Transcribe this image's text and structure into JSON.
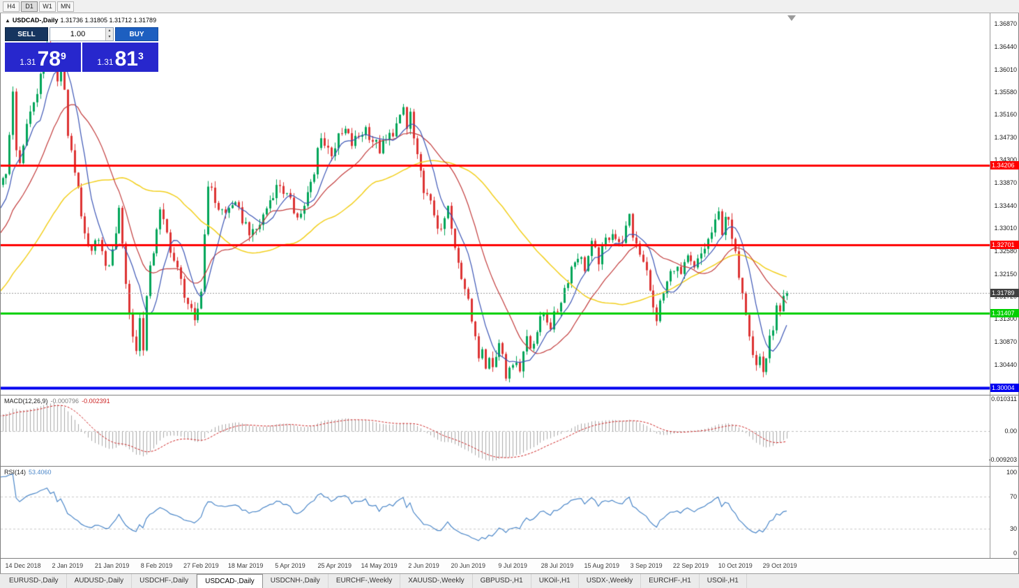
{
  "toolbar": {
    "timeframes": [
      "H4",
      "D1",
      "W1",
      "MN"
    ],
    "active": "D1"
  },
  "chart": {
    "title_symbol": "USDCAD-,Daily",
    "title_ohlc": "1.31736 1.31805 1.31712 1.31789",
    "trade_panel": {
      "sell_label": "SELL",
      "buy_label": "BUY",
      "volume": "1.00",
      "sell_price": {
        "prefix": "1.31",
        "big": "78",
        "sup": "9"
      },
      "buy_price": {
        "prefix": "1.31",
        "big": "81",
        "sup": "3"
      }
    }
  },
  "macd_label": {
    "name": "MACD(12,26,9)",
    "main": "-0.000796",
    "signal": "-0.002391"
  },
  "rsi_label": {
    "name": "RSI(14)",
    "value": "53.4060"
  },
  "tabs": [
    {
      "label": "EURUSD-,Daily",
      "active": false
    },
    {
      "label": "AUDUSD-,Daily",
      "active": false
    },
    {
      "label": "USDCHF-,Daily",
      "active": false
    },
    {
      "label": "USDCAD-,Daily",
      "active": true
    },
    {
      "label": "USDCNH-,Daily",
      "active": false
    },
    {
      "label": "EURCHF-,Weekly",
      "active": false
    },
    {
      "label": "XAUUSD-,Weekly",
      "active": false
    },
    {
      "label": "GBPUSD-,H1",
      "active": false
    },
    {
      "label": "UKOil-,H1",
      "active": false
    },
    {
      "label": "USDX-,Weekly",
      "active": false
    },
    {
      "label": "EURCHF-,H1",
      "active": false
    },
    {
      "label": "USOil-,H1",
      "active": false
    }
  ],
  "colors": {
    "up": "#00a558",
    "down": "#dd3333",
    "ma_fast": "#3b55b5",
    "ma_mid": "#c23b3b",
    "ma_slow": "#f2cf1d",
    "macd_hist": "#a8a8a8",
    "macd_signal": "#cc2222",
    "rsi": "#4a86c8",
    "current_line": "#9a9a9a"
  },
  "chart_data": {
    "type": "candlestick",
    "symbol": "USDCAD",
    "period": "Daily",
    "x0": 32,
    "dx": 4.91,
    "day_start": -60,
    "day_end": 223,
    "price_min": 1.2987,
    "price_max": 1.3707,
    "last_close": 1.31789,
    "keyframes": [
      [
        -60,
        1.298
      ],
      [
        -48,
        1.306
      ],
      [
        -36,
        1.315
      ],
      [
        -26,
        1.322
      ],
      [
        -16,
        1.329
      ],
      [
        -10,
        1.333
      ],
      [
        -7,
        1.3375
      ],
      [
        -5,
        1.34
      ],
      [
        -4,
        1.347
      ],
      [
        -3,
        1.3555
      ],
      [
        -2,
        1.3445
      ],
      [
        -1,
        1.343
      ],
      [
        0,
        1.3465
      ],
      [
        2,
        1.352
      ],
      [
        4,
        1.356
      ],
      [
        6,
        1.361
      ],
      [
        7,
        1.3648
      ],
      [
        8,
        1.3615
      ],
      [
        9,
        1.3645
      ],
      [
        10,
        1.359
      ],
      [
        11,
        1.3618
      ],
      [
        12,
        1.356
      ],
      [
        13,
        1.3478
      ],
      [
        14,
        1.344
      ],
      [
        16,
        1.338
      ],
      [
        18,
        1.328
      ],
      [
        20,
        1.325
      ],
      [
        22,
        1.329
      ],
      [
        24,
        1.322
      ],
      [
        26,
        1.3255
      ],
      [
        27,
        1.33
      ],
      [
        28,
        1.333
      ],
      [
        29,
        1.328
      ],
      [
        30,
        1.32
      ],
      [
        31,
        1.314
      ],
      [
        32,
        1.31
      ],
      [
        33,
        1.3072
      ],
      [
        34,
        1.313
      ],
      [
        35,
        1.308
      ],
      [
        36,
        1.317
      ],
      [
        37,
        1.322
      ],
      [
        38,
        1.326
      ],
      [
        39,
        1.3305
      ],
      [
        40,
        1.333
      ],
      [
        42,
        1.329
      ],
      [
        44,
        1.324
      ],
      [
        46,
        1.32
      ],
      [
        48,
        1.316
      ],
      [
        50,
        1.3118
      ],
      [
        51,
        1.315
      ],
      [
        52,
        1.3185
      ],
      [
        53,
        1.329
      ],
      [
        54,
        1.339
      ],
      [
        55,
        1.3368
      ],
      [
        57,
        1.334
      ],
      [
        59,
        1.3328
      ],
      [
        61,
        1.335
      ],
      [
        63,
        1.333
      ],
      [
        65,
        1.3308
      ],
      [
        67,
        1.3288
      ],
      [
        69,
        1.331
      ],
      [
        71,
        1.334
      ],
      [
        73,
        1.337
      ],
      [
        75,
        1.3385
      ],
      [
        77,
        1.336
      ],
      [
        79,
        1.3335
      ],
      [
        81,
        1.3328
      ],
      [
        83,
        1.3365
      ],
      [
        85,
        1.34
      ],
      [
        86,
        1.345
      ],
      [
        87,
        1.348
      ],
      [
        88,
        1.3458
      ],
      [
        90,
        1.3445
      ],
      [
        92,
        1.347
      ],
      [
        94,
        1.3485
      ],
      [
        96,
        1.346
      ],
      [
        98,
        1.3475
      ],
      [
        100,
        1.349
      ],
      [
        102,
        1.3468
      ],
      [
        104,
        1.345
      ],
      [
        106,
        1.3465
      ],
      [
        108,
        1.3485
      ],
      [
        110,
        1.3505
      ],
      [
        111,
        1.3528
      ],
      [
        112,
        1.3488
      ],
      [
        113,
        1.3518
      ],
      [
        114,
        1.3468
      ],
      [
        115,
        1.343
      ],
      [
        116,
        1.34
      ],
      [
        118,
        1.3358
      ],
      [
        120,
        1.333
      ],
      [
        122,
        1.3288
      ],
      [
        123,
        1.3318
      ],
      [
        124,
        1.3338
      ],
      [
        125,
        1.3298
      ],
      [
        126,
        1.3258
      ],
      [
        128,
        1.321
      ],
      [
        130,
        1.3178
      ],
      [
        131,
        1.3128
      ],
      [
        132,
        1.3088
      ],
      [
        133,
        1.3058
      ],
      [
        134,
        1.3078
      ],
      [
        135,
        1.3048
      ],
      [
        136,
        1.3068
      ],
      [
        137,
        1.3038
      ],
      [
        138,
        1.3058
      ],
      [
        139,
        1.3088
      ],
      [
        140,
        1.3068
      ],
      [
        141,
        1.3028
      ],
      [
        142,
        1.3048
      ],
      [
        143,
        1.3032
      ],
      [
        144,
        1.3058
      ],
      [
        145,
        1.3038
      ],
      [
        146,
        1.3068
      ],
      [
        147,
        1.3098
      ],
      [
        148,
        1.3078
      ],
      [
        150,
        1.3108
      ],
      [
        152,
        1.3142
      ],
      [
        154,
        1.3118
      ],
      [
        156,
        1.3148
      ],
      [
        158,
        1.3188
      ],
      [
        160,
        1.3228
      ],
      [
        162,
        1.3252
      ],
      [
        164,
        1.3228
      ],
      [
        166,
        1.3268
      ],
      [
        168,
        1.3242
      ],
      [
        170,
        1.3278
      ],
      [
        172,
        1.3298
      ],
      [
        174,
        1.3268
      ],
      [
        176,
        1.3298
      ],
      [
        177,
        1.3318
      ],
      [
        178,
        1.3288
      ],
      [
        180,
        1.3258
      ],
      [
        182,
        1.3228
      ],
      [
        183,
        1.3178
      ],
      [
        184,
        1.3148
      ],
      [
        185,
        1.3132
      ],
      [
        186,
        1.3158
      ],
      [
        188,
        1.3198
      ],
      [
        190,
        1.3232
      ],
      [
        192,
        1.3212
      ],
      [
        194,
        1.3242
      ],
      [
        196,
        1.3222
      ],
      [
        198,
        1.3252
      ],
      [
        200,
        1.3278
      ],
      [
        202,
        1.3308
      ],
      [
        203,
        1.3328
      ],
      [
        204,
        1.3298
      ],
      [
        205,
        1.3328
      ],
      [
        206,
        1.3308
      ],
      [
        207,
        1.3278
      ],
      [
        208,
        1.3248
      ],
      [
        209,
        1.3218
      ],
      [
        210,
        1.3188
      ],
      [
        211,
        1.3148
      ],
      [
        212,
        1.3108
      ],
      [
        213,
        1.3068
      ],
      [
        214,
        1.3042
      ],
      [
        215,
        1.3058
      ],
      [
        216,
        1.3032
      ],
      [
        217,
        1.3058
      ],
      [
        218,
        1.3088
      ],
      [
        219,
        1.3118
      ],
      [
        220,
        1.3148
      ],
      [
        221,
        1.3138
      ],
      [
        222,
        1.3162
      ],
      [
        223,
        1.3179
      ]
    ],
    "levels": [
      {
        "price": 1.34206,
        "label": "1.34206",
        "color": "#ff0000",
        "width": 3
      },
      {
        "price": 1.32701,
        "label": "1.32701",
        "color": "#ff0000",
        "width": 3
      },
      {
        "price": 1.31407,
        "label": "1.31407",
        "color": "#00cf00",
        "width": 3
      },
      {
        "price": 1.30004,
        "label": "1.30004",
        "color": "#0000f0",
        "width": 4
      }
    ],
    "current_price": {
      "price": 1.31789,
      "label": "1.31789",
      "color": "#3f3f3f"
    },
    "y_ticks": [
      "1.36870",
      "1.36440",
      "1.36010",
      "1.35580",
      "1.35160",
      "1.34730",
      "1.34300",
      "1.33870",
      "1.33440",
      "1.33010",
      "1.32580",
      "1.32150",
      "1.31720",
      "1.31300",
      "1.30870",
      "1.30440"
    ],
    "x_labels": [
      {
        "label": "14 Dec 2018",
        "d": 0
      },
      {
        "label": "2 Jan 2019",
        "d": 13
      },
      {
        "label": "21 Jan 2019",
        "d": 26
      },
      {
        "label": "8 Feb 2019",
        "d": 39
      },
      {
        "label": "27 Feb 2019",
        "d": 52
      },
      {
        "label": "18 Mar 2019",
        "d": 65
      },
      {
        "label": "5 Apr 2019",
        "d": 78
      },
      {
        "label": "25 Apr 2019",
        "d": 91
      },
      {
        "label": "14 May 2019",
        "d": 104
      },
      {
        "label": "2 Jun 2019",
        "d": 117
      },
      {
        "label": "20 Jun 2019",
        "d": 130
      },
      {
        "label": "9 Jul 2019",
        "d": 143
      },
      {
        "label": "28 Jul 2019",
        "d": 156
      },
      {
        "label": "15 Aug 2019",
        "d": 169
      },
      {
        "label": "3 Sep 2019",
        "d": 182
      },
      {
        "label": "22 Sep 2019",
        "d": 195
      },
      {
        "label": "10 Oct 2019",
        "d": 208
      },
      {
        "label": "29 Oct 2019",
        "d": 221
      }
    ],
    "macd_max": 0.0115,
    "macd_min": -0.0113,
    "macd_ticks": [
      {
        "label": "0.010311",
        "value": 0.010311
      },
      {
        "label": "0.00",
        "value": 0
      },
      {
        "label": "-0.009203",
        "value": -0.009203
      }
    ],
    "rsi_top": 8,
    "rsi_scale": 1.16,
    "rsi_ticks": [
      {
        "label": "100",
        "value": 100
      },
      {
        "label": "70",
        "value": 70
      },
      {
        "label": "30",
        "value": 30
      },
      {
        "label": "0",
        "value": 0
      }
    ],
    "rsi_levels": [
      70,
      30
    ],
    "indicators": {
      "ma_fast": 8,
      "ma_mid": 20,
      "ma_slow": 50,
      "macd": [
        12,
        26,
        9
      ],
      "rsi": 14
    }
  }
}
